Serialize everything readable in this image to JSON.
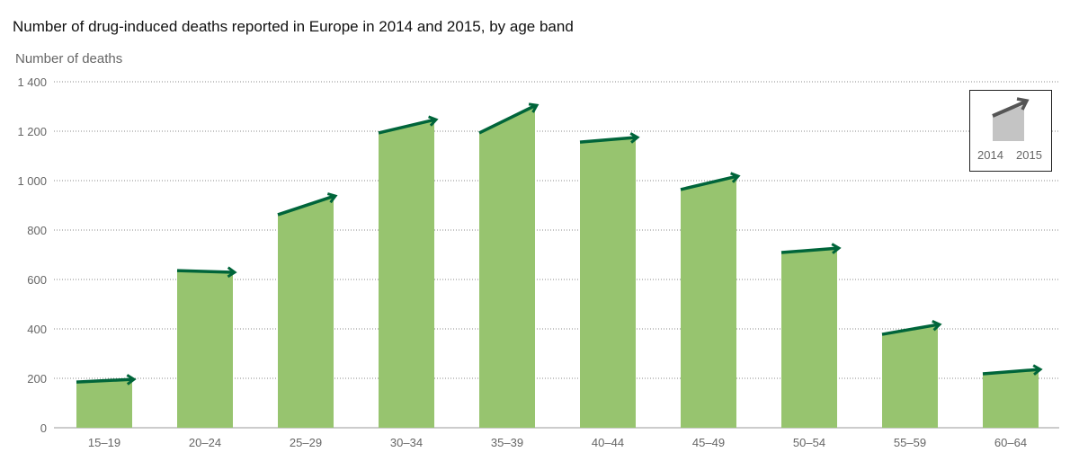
{
  "chart_data": {
    "type": "bar",
    "title": "Number of drug-induced deaths reported in Europe in 2014 and 2015, by age band",
    "ylabel": "Number of deaths",
    "xlabel": "",
    "ylim": [
      0,
      1400
    ],
    "yticks": [
      0,
      200,
      400,
      600,
      800,
      1000,
      1200,
      1400
    ],
    "ytick_labels": [
      "0",
      "200",
      "400",
      "600",
      "800",
      "1 000",
      "1 200",
      "1 400"
    ],
    "grid": true,
    "categories": [
      "15–19",
      "20–24",
      "25–29",
      "30–34",
      "35–39",
      "40–44",
      "45–49",
      "50–54",
      "55–59",
      "60–64"
    ],
    "series": [
      {
        "name": "2014",
        "values": [
          185,
          636,
          862,
          1193,
          1193,
          1156,
          964,
          709,
          378,
          218
        ]
      },
      {
        "name": "2015",
        "values": [
          196,
          629,
          938,
          1247,
          1305,
          1175,
          1018,
          727,
          418,
          236
        ]
      }
    ],
    "legend": {
      "placement": "top-right",
      "labels": [
        "2014",
        "2015"
      ]
    },
    "colors": {
      "bar": "#97c46f",
      "arrow": "#00653a",
      "legend_fill": "#c4c4c4",
      "legend_arrow": "#555555"
    }
  }
}
